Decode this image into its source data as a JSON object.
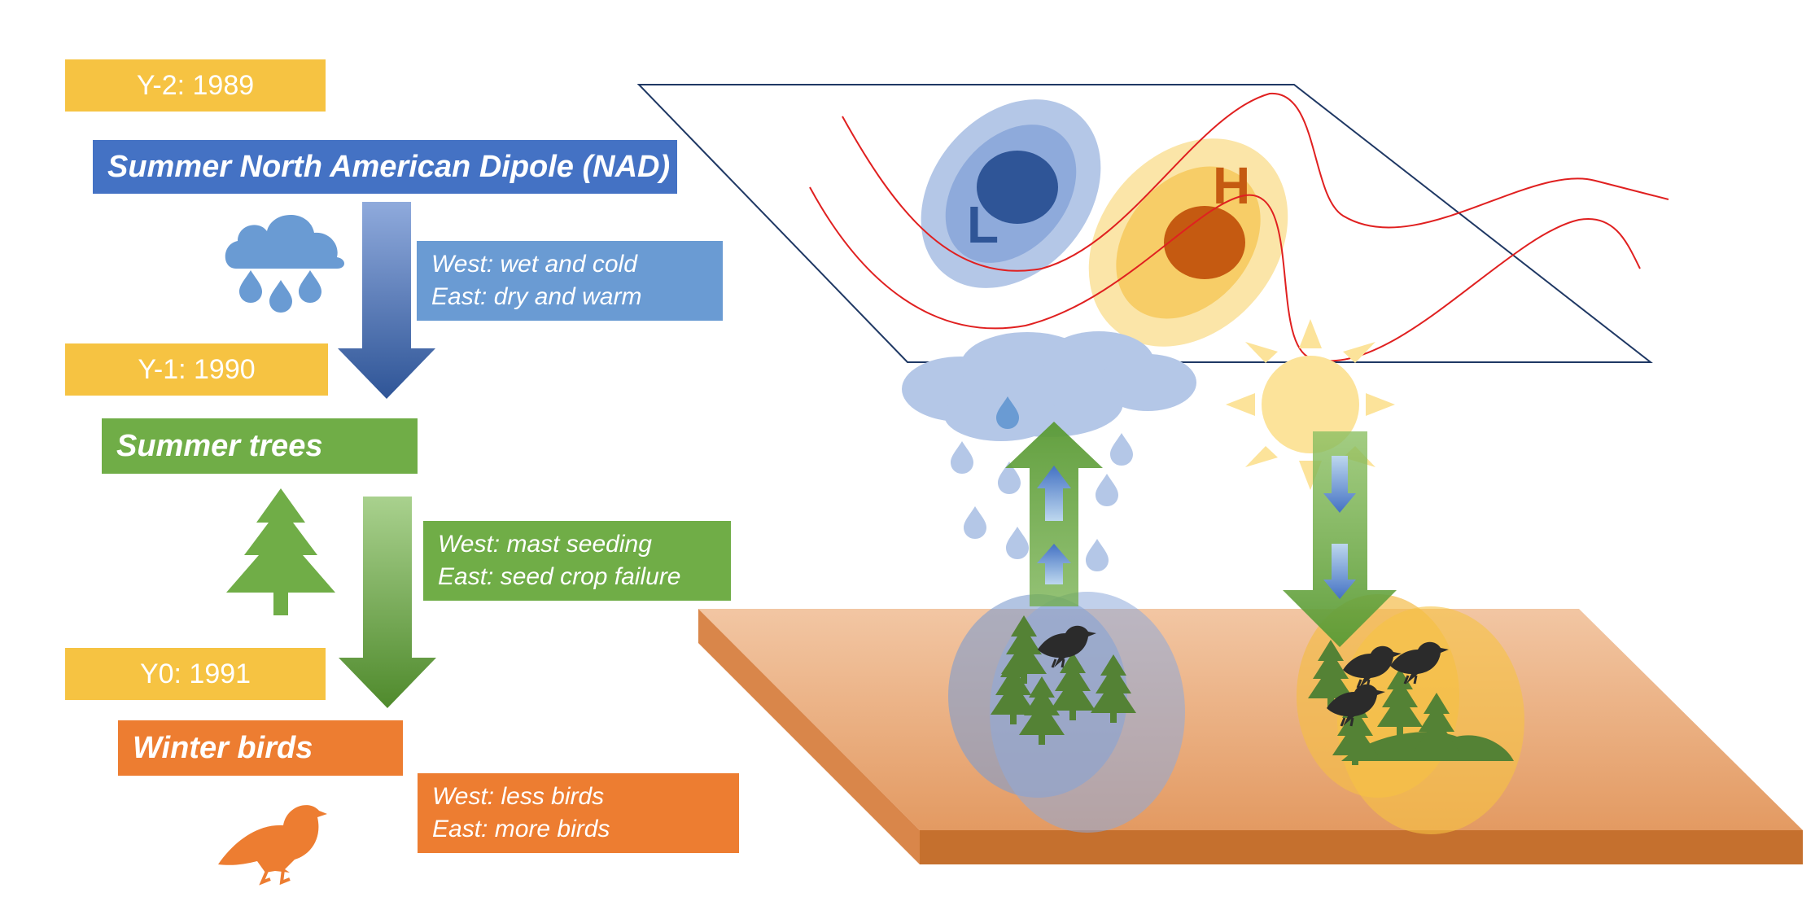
{
  "timeline": {
    "y2": "Y-2: 1989",
    "y1": "Y-1: 1990",
    "y0": "Y0: 1991"
  },
  "stages": {
    "nad": {
      "title": "Summer North American Dipole (NAD)",
      "west": "West: wet and cold",
      "east": "East: dry and warm"
    },
    "trees": {
      "title": "Summer trees",
      "west": "West: mast seeding",
      "east": "East: seed crop failure"
    },
    "birds": {
      "title": "Winter birds",
      "west": "West: less birds",
      "east": "East: more birds"
    }
  },
  "map": {
    "low_label": "L",
    "high_label": "H"
  },
  "colors": {
    "year": "#f6c342",
    "nad": "#4472c4",
    "trees": "#70ad47",
    "birds": "#ed7d31",
    "low": "#2f5597",
    "high": "#c55a11",
    "ground": "#e9a271"
  },
  "icons": [
    "rain-cloud-icon",
    "pine-tree-icon",
    "bird-icon",
    "sun-icon",
    "cloud-icon"
  ]
}
